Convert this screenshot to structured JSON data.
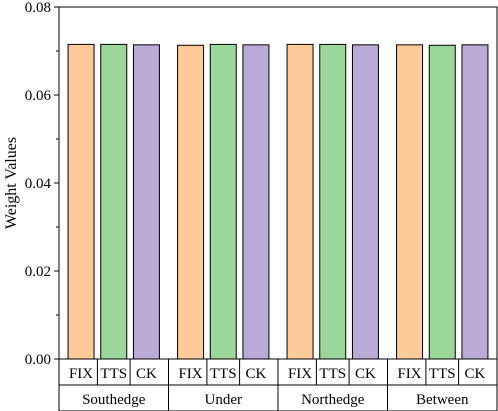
{
  "chart_data": {
    "type": "bar",
    "title": "",
    "xlabel": "",
    "ylabel": "Weight Values",
    "ylim": [
      0,
      0.08
    ],
    "yticks": [
      "0.00",
      "0.02",
      "0.04",
      "0.06",
      "0.08"
    ],
    "grid": false,
    "groups": [
      {
        "name": "Southedge",
        "bars": [
          {
            "label": "FIX",
            "value": 0.0715,
            "color": "#FDCA99"
          },
          {
            "label": "TTS",
            "value": 0.0715,
            "color": "#9BD69B"
          },
          {
            "label": "CK",
            "value": 0.0714,
            "color": "#BBA9D6"
          }
        ]
      },
      {
        "name": "Under",
        "bars": [
          {
            "label": "FIX",
            "value": 0.0713,
            "color": "#FDCA99"
          },
          {
            "label": "TTS",
            "value": 0.0715,
            "color": "#9BD69B"
          },
          {
            "label": "CK",
            "value": 0.0714,
            "color": "#BBA9D6"
          }
        ]
      },
      {
        "name": "Northedge",
        "bars": [
          {
            "label": "FIX",
            "value": 0.0715,
            "color": "#FDCA99"
          },
          {
            "label": "TTS",
            "value": 0.0715,
            "color": "#9BD69B"
          },
          {
            "label": "CK",
            "value": 0.0714,
            "color": "#BBA9D6"
          }
        ]
      },
      {
        "name": "Between",
        "bars": [
          {
            "label": "FIX",
            "value": 0.0714,
            "color": "#FDCA99"
          },
          {
            "label": "TTS",
            "value": 0.0713,
            "color": "#9BD69B"
          },
          {
            "label": "CK",
            "value": 0.0714,
            "color": "#BBA9D6"
          }
        ]
      }
    ]
  }
}
